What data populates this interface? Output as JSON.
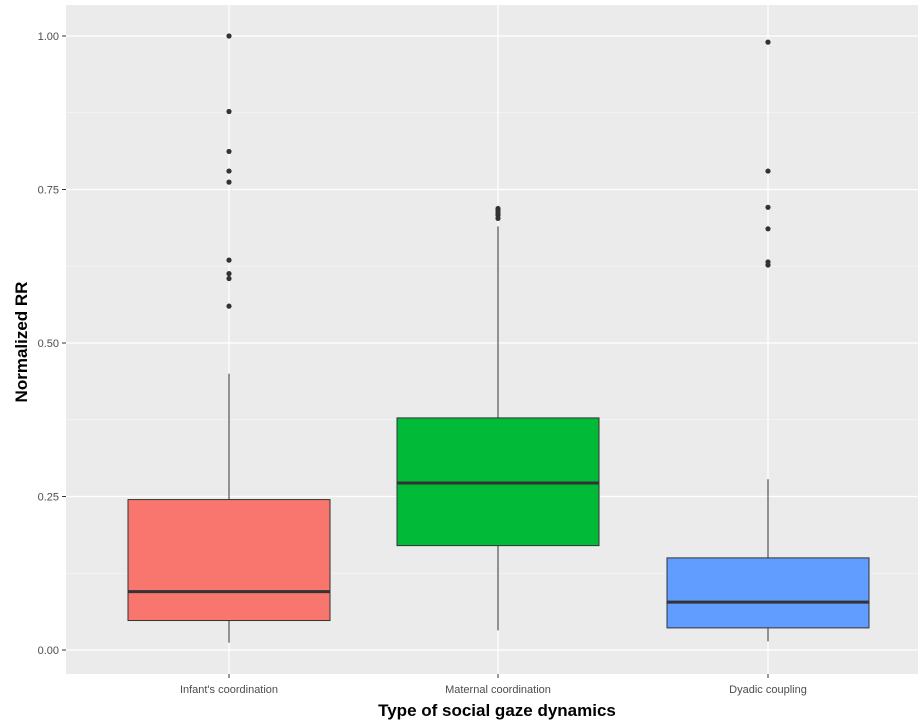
{
  "chart_data": {
    "type": "boxplot",
    "title": "",
    "xlabel": "Type of social gaze dynamics",
    "ylabel": "Normalized RR",
    "ylim": [
      -0.02,
      1.05
    ],
    "yticks": [
      0.0,
      0.25,
      0.5,
      0.75,
      1.0
    ],
    "ytick_labels": [
      "0.00",
      "0.25",
      "0.50",
      "0.75",
      "1.00"
    ],
    "grid": true,
    "legend": "none",
    "categories": [
      "Infant's coordination",
      "Maternal coordination",
      "Dyadic coupling"
    ],
    "boxes": [
      {
        "category": "Infant's coordination",
        "color": "#F8766D",
        "whisker_low": 0.012,
        "q1": 0.048,
        "median": 0.095,
        "q3": 0.245,
        "whisker_high": 0.45,
        "outliers": [
          0.56,
          0.605,
          0.613,
          0.635,
          0.762,
          0.78,
          0.812,
          0.877,
          1.0
        ]
      },
      {
        "category": "Maternal coordination",
        "color": "#00BA38",
        "whisker_low": 0.032,
        "q1": 0.17,
        "median": 0.272,
        "q3": 0.378,
        "whisker_high": 0.69,
        "outliers": [
          0.703,
          0.708,
          0.712,
          0.716,
          0.719
        ]
      },
      {
        "category": "Dyadic coupling",
        "color": "#619CFF",
        "whisker_low": 0.014,
        "q1": 0.036,
        "median": 0.078,
        "q3": 0.15,
        "whisker_high": 0.278,
        "outliers": [
          0.627,
          0.632,
          0.686,
          0.721,
          0.78,
          0.99
        ]
      }
    ]
  }
}
